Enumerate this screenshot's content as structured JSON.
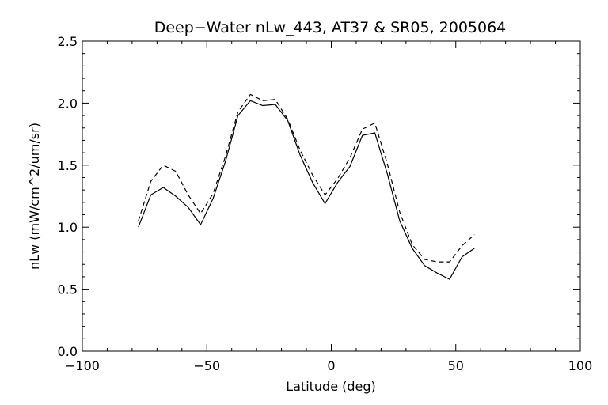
{
  "chart_data": {
    "type": "line",
    "title": "Deep−Water nLw_443, AT37 & SR05, 2005064",
    "xlabel": "Latitude (deg)",
    "ylabel": "nLw (mW/cm^2/um/sr)",
    "xlim": [
      -100,
      100
    ],
    "ylim": [
      0.0,
      2.5
    ],
    "x_ticks": [
      -100,
      -50,
      0,
      50,
      100
    ],
    "x_tick_labels": [
      "−100",
      "−50",
      "0",
      "50",
      "100"
    ],
    "y_ticks": [
      0.0,
      0.5,
      1.0,
      1.5,
      2.0,
      2.5
    ],
    "y_tick_labels": [
      "0.0",
      "0.5",
      "1.0",
      "1.5",
      "2.0",
      "2.5"
    ],
    "grid": false,
    "series": [
      {
        "style": "solid",
        "color": "#000000",
        "points": [
          [
            -77.5,
            1.0
          ],
          [
            -72.5,
            1.26
          ],
          [
            -67.5,
            1.32
          ],
          [
            -62.5,
            1.25
          ],
          [
            -57.5,
            1.16
          ],
          [
            -52.5,
            1.02
          ],
          [
            -47.5,
            1.23
          ],
          [
            -42.5,
            1.53
          ],
          [
            -37.5,
            1.9
          ],
          [
            -32.5,
            2.02
          ],
          [
            -27.5,
            1.98
          ],
          [
            -22.5,
            1.99
          ],
          [
            -17.5,
            1.86
          ],
          [
            -12.5,
            1.58
          ],
          [
            -7.5,
            1.36
          ],
          [
            -2.5,
            1.19
          ],
          [
            2.5,
            1.36
          ],
          [
            7.5,
            1.49
          ],
          [
            12.5,
            1.74
          ],
          [
            17.5,
            1.76
          ],
          [
            22.5,
            1.43
          ],
          [
            27.5,
            1.05
          ],
          [
            32.5,
            0.83
          ],
          [
            37.5,
            0.69
          ],
          [
            42.5,
            0.63
          ],
          [
            47.5,
            0.58
          ],
          [
            52.5,
            0.76
          ],
          [
            57.5,
            0.83
          ]
        ]
      },
      {
        "style": "dashed",
        "color": "#000000",
        "points": [
          [
            -77.5,
            1.05
          ],
          [
            -72.5,
            1.37
          ],
          [
            -67.5,
            1.5
          ],
          [
            -62.5,
            1.45
          ],
          [
            -57.5,
            1.26
          ],
          [
            -52.5,
            1.11
          ],
          [
            -47.5,
            1.27
          ],
          [
            -42.5,
            1.57
          ],
          [
            -37.5,
            1.93
          ],
          [
            -32.5,
            2.07
          ],
          [
            -27.5,
            2.02
          ],
          [
            -22.5,
            2.03
          ],
          [
            -17.5,
            1.87
          ],
          [
            -12.5,
            1.62
          ],
          [
            -7.5,
            1.42
          ],
          [
            -2.5,
            1.26
          ],
          [
            2.5,
            1.39
          ],
          [
            7.5,
            1.56
          ],
          [
            12.5,
            1.79
          ],
          [
            17.5,
            1.84
          ],
          [
            22.5,
            1.51
          ],
          [
            27.5,
            1.12
          ],
          [
            32.5,
            0.86
          ],
          [
            37.5,
            0.74
          ],
          [
            42.5,
            0.72
          ],
          [
            47.5,
            0.72
          ],
          [
            52.5,
            0.85
          ],
          [
            57.5,
            0.94
          ]
        ]
      }
    ]
  }
}
